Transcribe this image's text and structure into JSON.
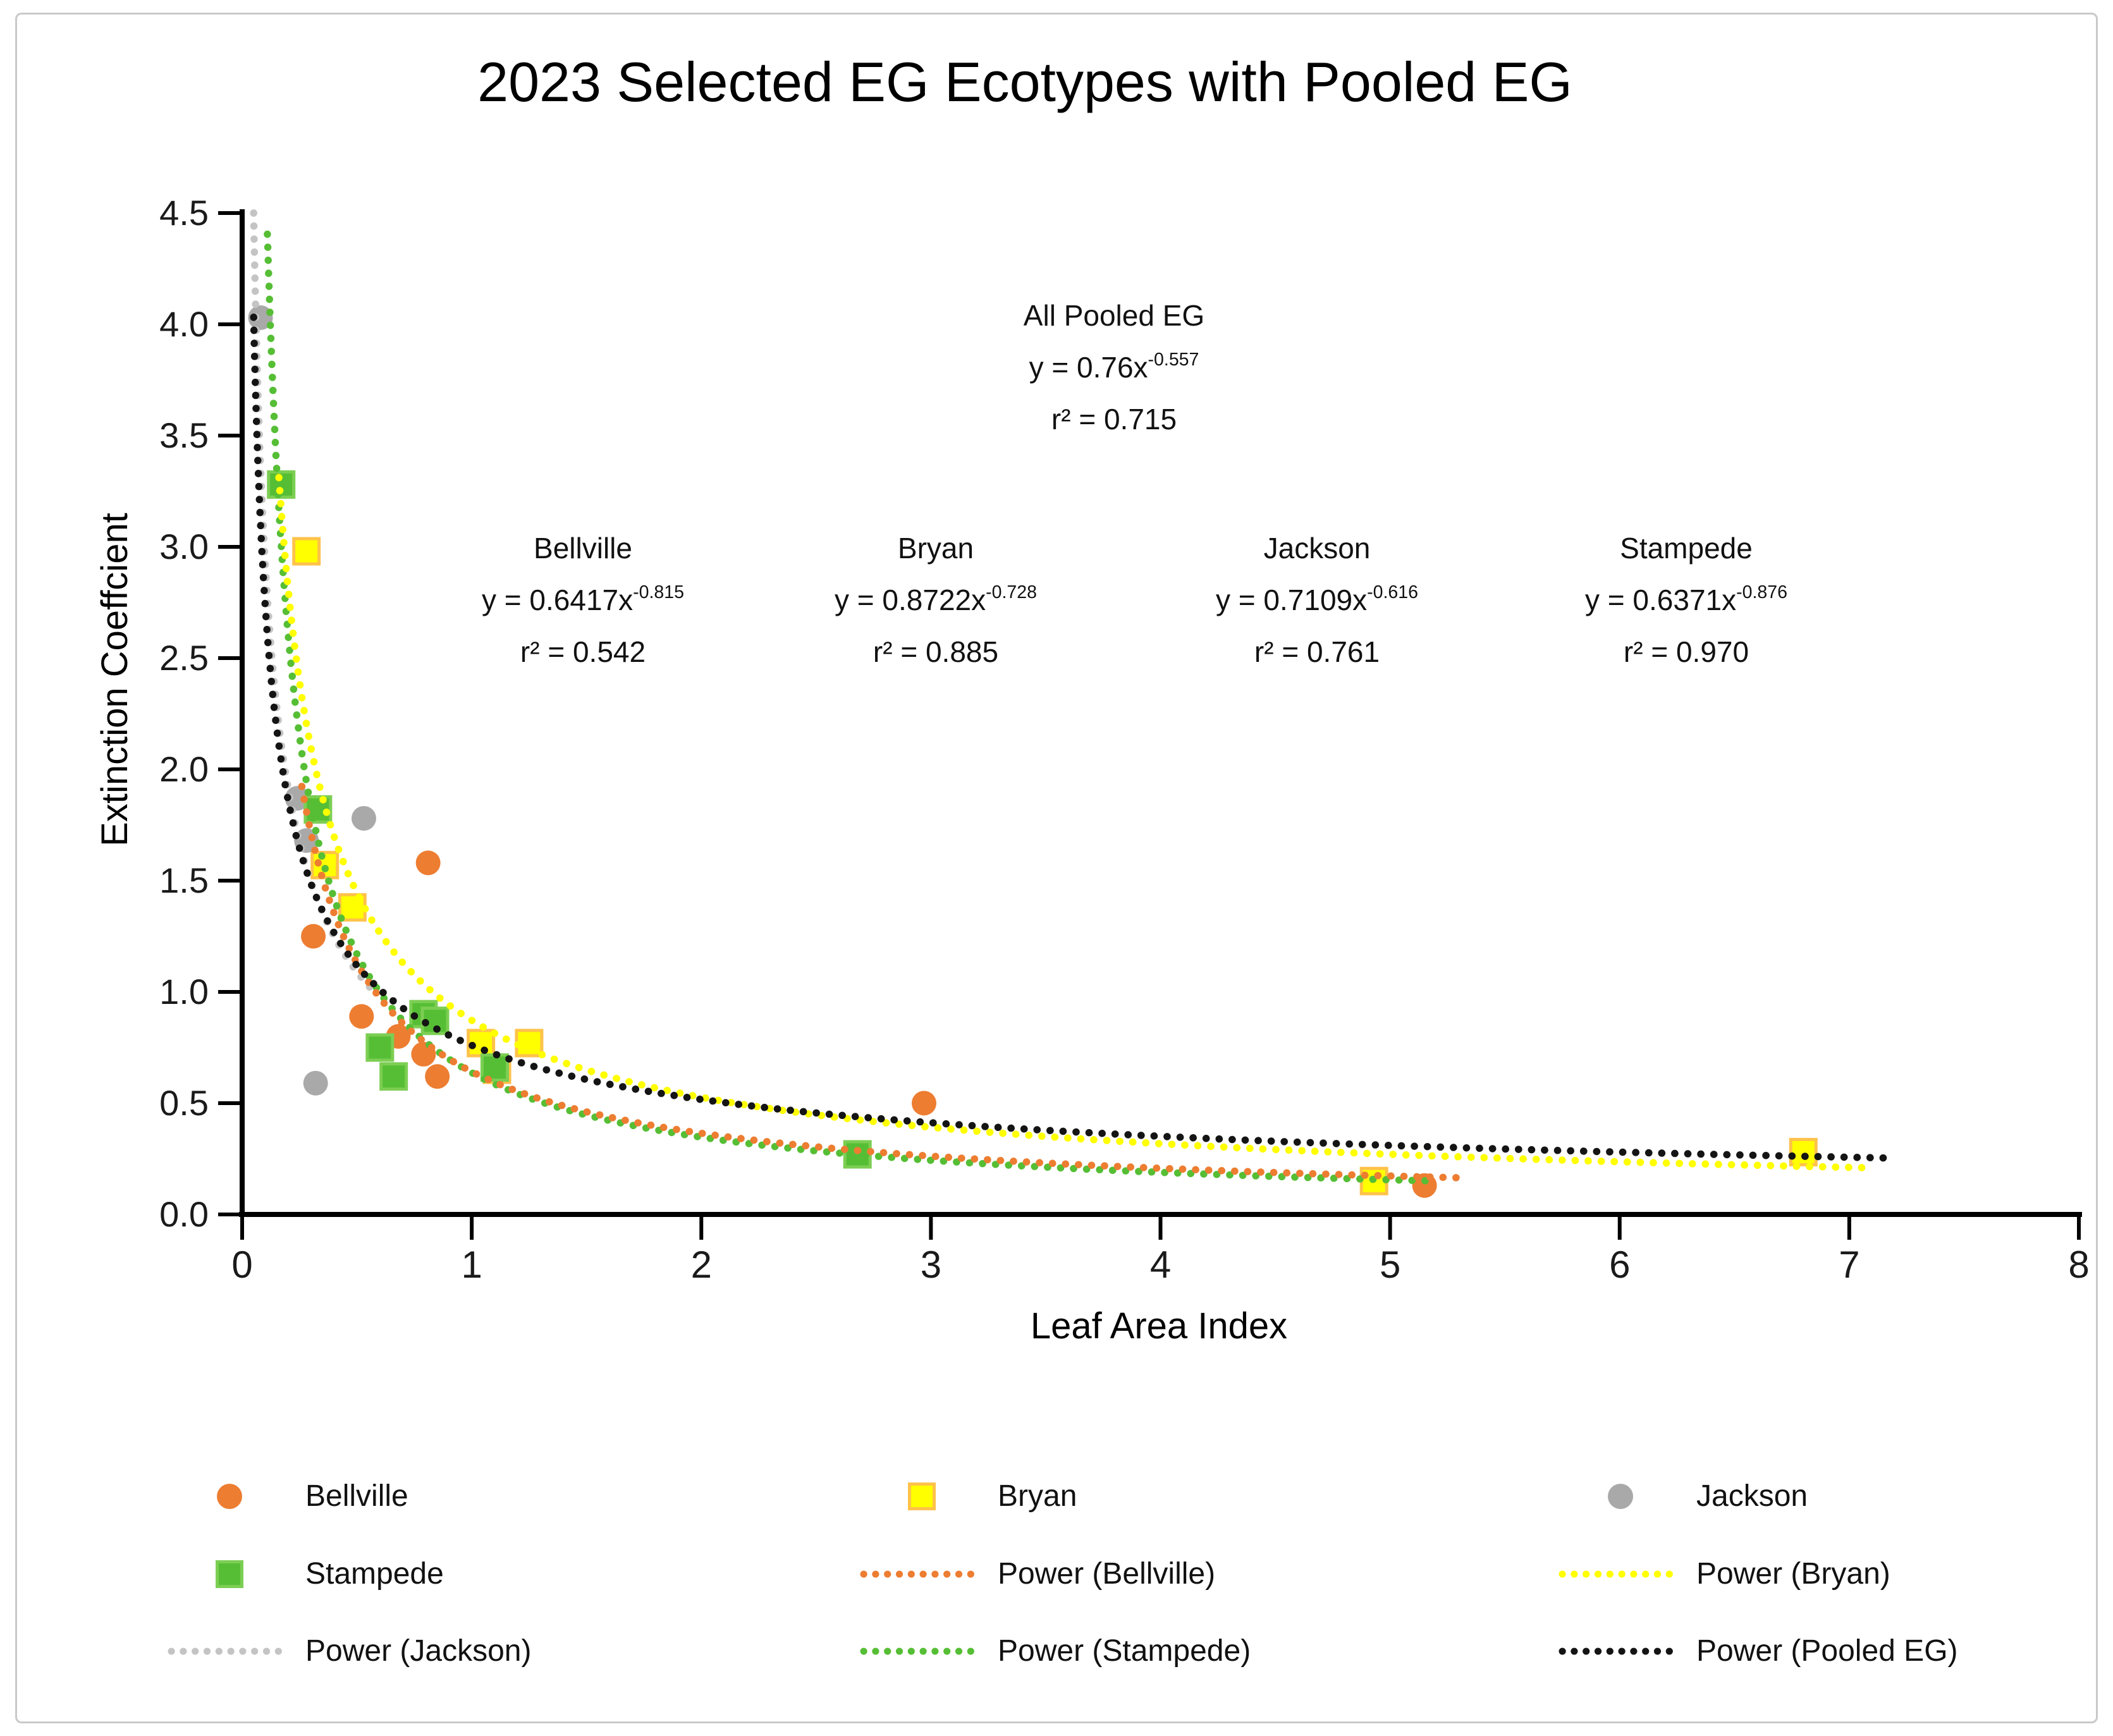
{
  "title": "2023 Selected EG Ecotypes with Pooled EG",
  "chart_data": {
    "type": "scatter",
    "title": "2023 Selected EG Ecotypes with Pooled EG",
    "xlabel": "Leaf Area Index",
    "ylabel": "Extinction Coeffcient",
    "xlim": [
      0,
      8
    ],
    "ylim": [
      0,
      4.5
    ],
    "x_ticks": [
      "0",
      "1",
      "2",
      "3",
      "4",
      "5",
      "6",
      "7",
      "8"
    ],
    "y_ticks": [
      "0.0",
      "0.5",
      "1.0",
      "1.5",
      "2.0",
      "2.5",
      "3.0",
      "3.5",
      "4.0",
      "4.5"
    ],
    "grid": false,
    "legend_position": "bottom",
    "series": [
      {
        "name": "Bellville",
        "marker": "circle",
        "color": "#ED7D31",
        "points": [
          [
            0.31,
            1.25
          ],
          [
            0.52,
            0.89
          ],
          [
            0.68,
            0.8
          ],
          [
            0.79,
            0.72
          ],
          [
            0.81,
            1.58
          ],
          [
            0.85,
            0.62
          ],
          [
            2.97,
            0.5
          ],
          [
            5.15,
            0.13
          ]
        ]
      },
      {
        "name": "Bryan",
        "marker": "square",
        "color": "#FFFF00",
        "border_color": "#FFC24A",
        "points": [
          [
            0.28,
            2.98
          ],
          [
            0.36,
            1.57
          ],
          [
            0.48,
            1.38
          ],
          [
            1.04,
            0.77
          ],
          [
            1.11,
            0.65
          ],
          [
            1.25,
            0.77
          ],
          [
            4.93,
            0.15
          ],
          [
            6.8,
            0.28
          ]
        ]
      },
      {
        "name": "Jackson",
        "marker": "circle",
        "color": "#A9A9A9",
        "points": [
          [
            0.08,
            4.03
          ],
          [
            0.24,
            1.87
          ],
          [
            0.28,
            1.68
          ],
          [
            0.32,
            0.59
          ],
          [
            0.53,
            1.78
          ]
        ]
      },
      {
        "name": "Stampede",
        "marker": "square",
        "color": "#56BE35",
        "border_color": "#7CCE53",
        "points": [
          [
            0.17,
            3.28
          ],
          [
            0.33,
            1.82
          ],
          [
            0.6,
            0.75
          ],
          [
            0.66,
            0.62
          ],
          [
            0.79,
            0.9
          ],
          [
            0.84,
            0.87
          ],
          [
            1.1,
            0.66
          ],
          [
            2.68,
            0.27
          ]
        ]
      }
    ],
    "trendlines": [
      {
        "name": "Power (Jackson)",
        "equation": "y = 0.7109x^-0.616",
        "a": 0.7109,
        "b": -0.616,
        "r2": 0.761,
        "domain": [
          0.05,
          0.56
        ],
        "color": "#C4C4C4"
      },
      {
        "name": "Power (Stampede)",
        "equation": "y = 0.6371x^-0.876",
        "a": 0.6371,
        "b": -0.876,
        "r2": 0.97,
        "domain": [
          0.11,
          5.2
        ],
        "color": "#56BE35"
      },
      {
        "name": "Power (Bellville)",
        "equation": "y = 0.6417x^-0.815",
        "a": 0.6417,
        "b": -0.815,
        "r2": 0.542,
        "domain": [
          0.26,
          5.3
        ],
        "color": "#ED7D31"
      },
      {
        "name": "Power (Bryan)",
        "equation": "y = 0.8722x^-0.728",
        "a": 0.8722,
        "b": -0.728,
        "r2": 0.885,
        "domain": [
          0.16,
          7.1
        ],
        "color": "#FFFF00"
      },
      {
        "name": "Power (Pooled EG)",
        "equation": "y = 0.76x^-0.557",
        "a": 0.76,
        "b": -0.557,
        "r2": 0.715,
        "domain": [
          0.05,
          7.15
        ],
        "color": "#141414"
      }
    ]
  },
  "annotations": {
    "pooled": {
      "name": "All Pooled EG",
      "eq_base": "y = 0.76x",
      "eq_exp": "-0.557",
      "r2": "r² = 0.715"
    },
    "bellville": {
      "name": "Bellville",
      "eq_base": "y = 0.6417x",
      "eq_exp": "-0.815",
      "r2": "r² = 0.542"
    },
    "bryan": {
      "name": "Bryan",
      "eq_base": "y = 0.8722x",
      "eq_exp": "-0.728",
      "r2": "r² = 0.885"
    },
    "jackson": {
      "name": "Jackson",
      "eq_base": "y = 0.7109x",
      "eq_exp": "-0.616",
      "r2": "r² = 0.761"
    },
    "stampede": {
      "name": "Stampede",
      "eq_base": "y = 0.6371x",
      "eq_exp": "-0.876",
      "r2": "r² = 0.970"
    }
  },
  "legend": {
    "items": [
      {
        "label": "Bellville",
        "swatch": "circle",
        "color": "#ED7D31"
      },
      {
        "label": "Bryan",
        "swatch": "square",
        "color": "#FFFF00",
        "border_color": "#FFC24A"
      },
      {
        "label": "Jackson",
        "swatch": "circle",
        "color": "#A9A9A9"
      },
      {
        "label": "Stampede",
        "swatch": "square",
        "color": "#56BE35",
        "border_color": "#7CCE53"
      },
      {
        "label": "Power (Bellville)",
        "swatch": "dotted-line",
        "color": "#ED7D31"
      },
      {
        "label": "Power (Bryan)",
        "swatch": "dotted-line",
        "color": "#FFFF00"
      },
      {
        "label": "Power (Jackson)",
        "swatch": "dotted-line",
        "color": "#C4C4C4"
      },
      {
        "label": "Power (Stampede)",
        "swatch": "dotted-line",
        "color": "#56BE35"
      },
      {
        "label": "Power (Pooled EG)",
        "swatch": "dotted-line",
        "color": "#141414"
      }
    ]
  },
  "colors": {
    "axis": "#000000",
    "text": "#1a1a1a",
    "frame_border": "#C9C9C9",
    "background": "#FFFFFF"
  }
}
